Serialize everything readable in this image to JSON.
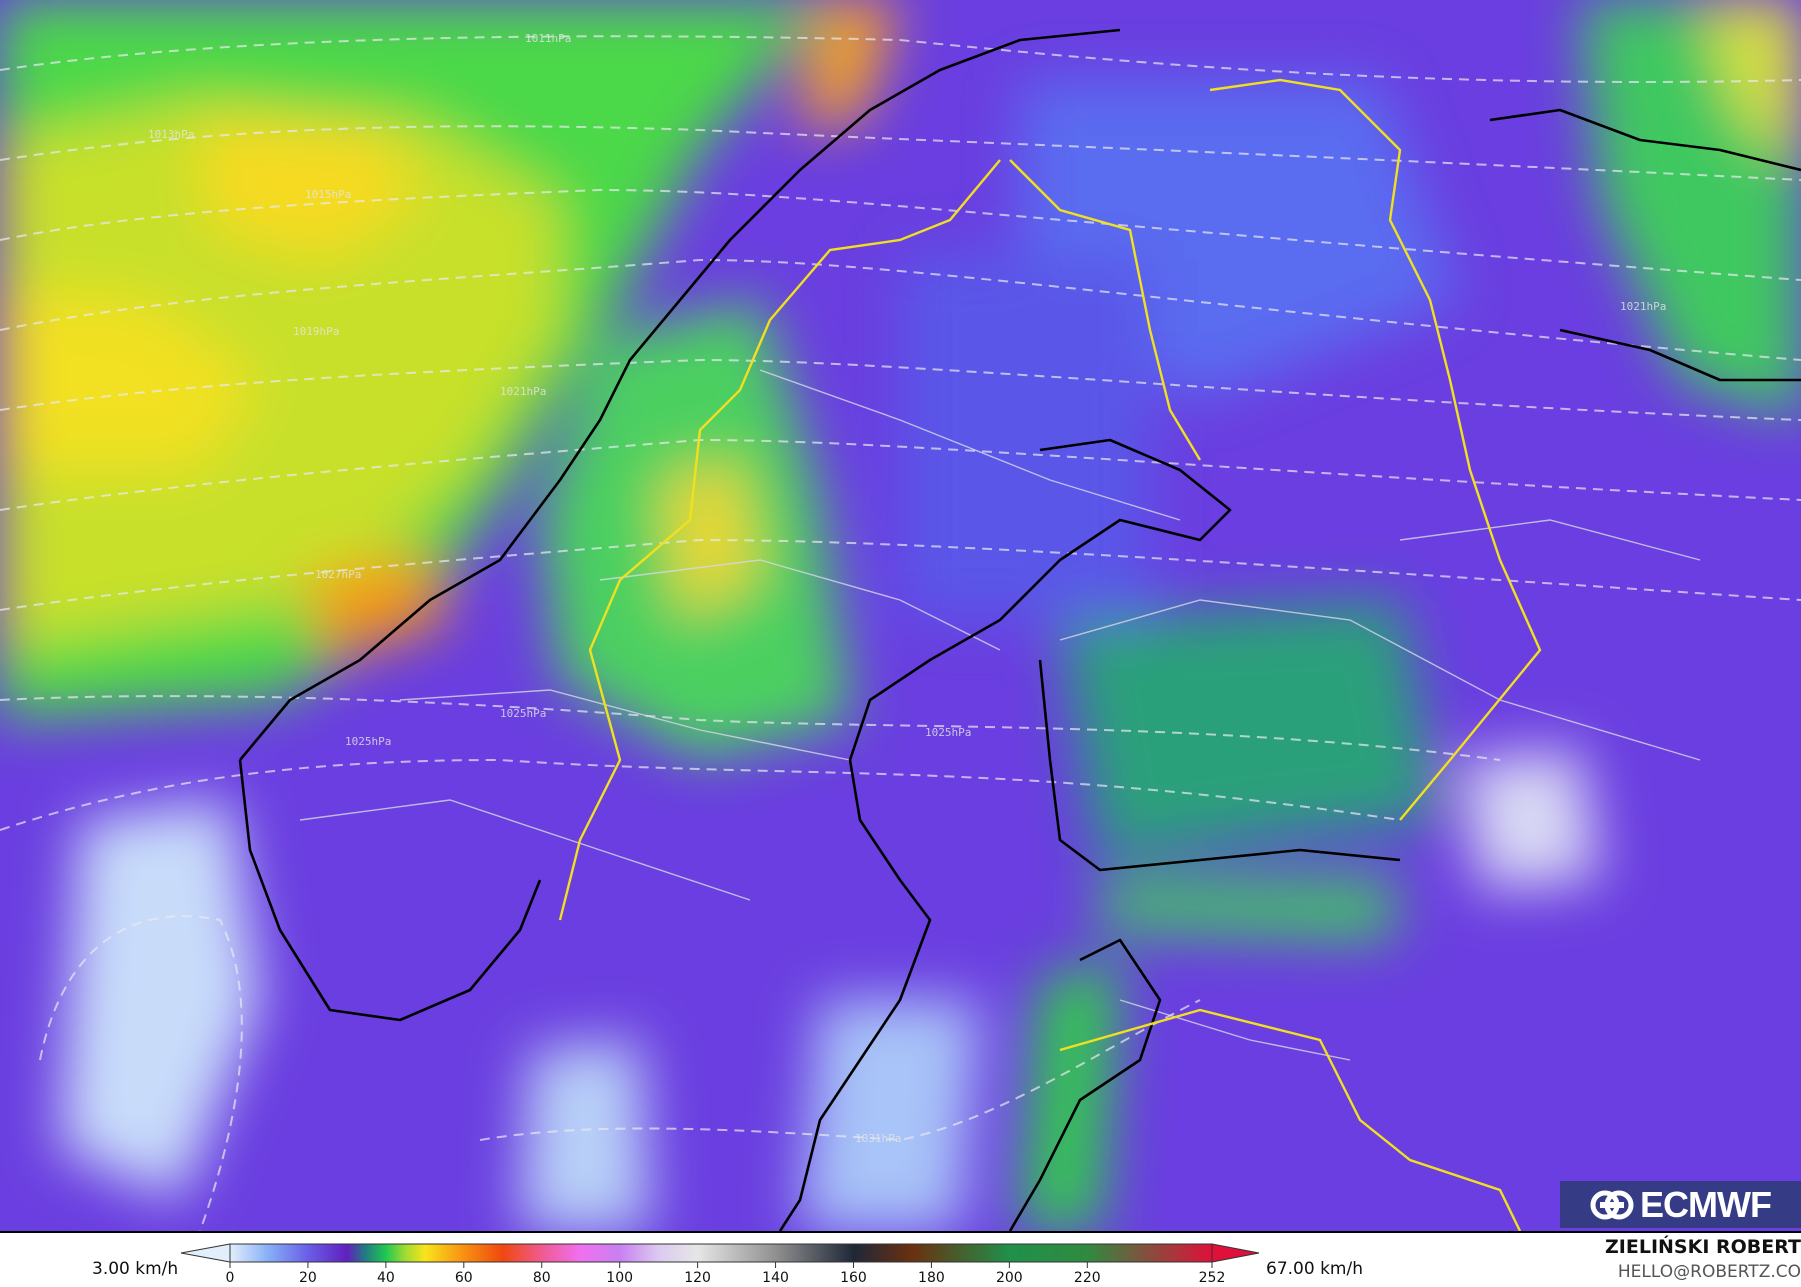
{
  "map": {
    "isobar_labels": [
      "1011hPa",
      "1013hPa",
      "1015hPa",
      "1019hPa",
      "1021hPa",
      "1027hPa",
      "1025hPa",
      "1025hPa",
      "1021hPa",
      "1031hPa",
      "1025hPa"
    ],
    "colors": {
      "coastline": "#000000",
      "national_border": "#f0e020",
      "region_border": "#d8d8e8",
      "isobar": "#e8e8f0"
    }
  },
  "legend": {
    "min_label": "3.00 km/h",
    "max_label": "67.00 km/h",
    "ticks": [
      "0",
      "20",
      "40",
      "60",
      "80",
      "100",
      "120",
      "140",
      "160",
      "180",
      "200",
      "220",
      "252"
    ],
    "tick_values": [
      0,
      20,
      40,
      60,
      80,
      100,
      120,
      140,
      160,
      180,
      200,
      220,
      252
    ],
    "range": [
      0,
      252
    ],
    "color_stops": [
      {
        "v": 0,
        "c": "#e2eefc"
      },
      {
        "v": 10,
        "c": "#86aef6"
      },
      {
        "v": 20,
        "c": "#6a5ee8"
      },
      {
        "v": 30,
        "c": "#6020c0"
      },
      {
        "v": 35,
        "c": "#208080"
      },
      {
        "v": 40,
        "c": "#20c850"
      },
      {
        "v": 45,
        "c": "#a0dc30"
      },
      {
        "v": 50,
        "c": "#f8e41c"
      },
      {
        "v": 60,
        "c": "#f89010"
      },
      {
        "v": 70,
        "c": "#f04810"
      },
      {
        "v": 80,
        "c": "#f05a90"
      },
      {
        "v": 90,
        "c": "#f070f0"
      },
      {
        "v": 100,
        "c": "#c880f0"
      },
      {
        "v": 110,
        "c": "#dccaf0"
      },
      {
        "v": 120,
        "c": "#e6e6e6"
      },
      {
        "v": 140,
        "c": "#909090"
      },
      {
        "v": 160,
        "c": "#1e2838"
      },
      {
        "v": 175,
        "c": "#6a3010"
      },
      {
        "v": 200,
        "c": "#20904a"
      },
      {
        "v": 220,
        "c": "#308a40"
      },
      {
        "v": 252,
        "c": "#e0103a"
      }
    ]
  },
  "branding": {
    "logo_text": "ECMWF",
    "author": "ZIELIŃSKI ROBERT",
    "email": "HELLO@ROBERTZ.CO"
  }
}
